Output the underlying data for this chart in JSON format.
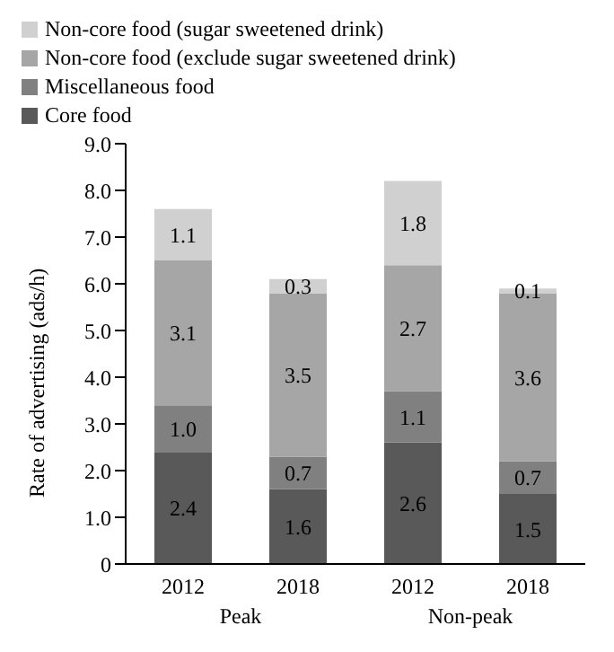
{
  "chart_data": {
    "type": "bar",
    "stacked": true,
    "ylabel": "Rate of advertising (ads/h)",
    "categories": [
      "2012",
      "2018",
      "2012",
      "2018"
    ],
    "series": [
      {
        "name": "Core food",
        "color": "#595959",
        "values": [
          2.4,
          1.6,
          2.6,
          1.5
        ],
        "value_labels": [
          "2.4",
          "1.6",
          "2.6",
          "1.5"
        ]
      },
      {
        "name": "Miscellaneous food",
        "color": "#808080",
        "values": [
          1.0,
          0.7,
          1.1,
          0.7
        ],
        "value_labels": [
          "1.0",
          "0.7",
          "1.1",
          "0.7"
        ]
      },
      {
        "name": "Non-core food (exclude sugar sweetened drink)",
        "color": "#a6a6a6",
        "values": [
          3.1,
          3.5,
          2.7,
          3.6
        ],
        "value_labels": [
          "3.1",
          "3.5",
          "2.7",
          "3.6"
        ]
      },
      {
        "name": "Non-core food (sugar sweetened drink)",
        "color": "#d0d0d0",
        "values": [
          1.1,
          0.3,
          1.8,
          0.1
        ],
        "value_labels": [
          "1.1",
          "0.3",
          "1.8",
          "0.1"
        ]
      }
    ],
    "ylim": [
      0,
      9
    ],
    "yticks": [
      0,
      {
        "value": 1,
        "label": "1.0"
      },
      {
        "value": 2,
        "label": "2.0"
      },
      {
        "value": 3,
        "label": "3.0"
      },
      {
        "value": 4,
        "label": "4.0"
      },
      {
        "value": 5,
        "label": "5.0"
      },
      {
        "value": 6,
        "label": "6.0"
      },
      {
        "value": 7,
        "label": "7.0"
      },
      {
        "value": 8,
        "label": "8.0"
      },
      {
        "value": 9,
        "label": "9.0"
      }
    ],
    "legend": "top left",
    "grid": false,
    "annotations": [
      "Peak",
      "Non-peak"
    ]
  }
}
